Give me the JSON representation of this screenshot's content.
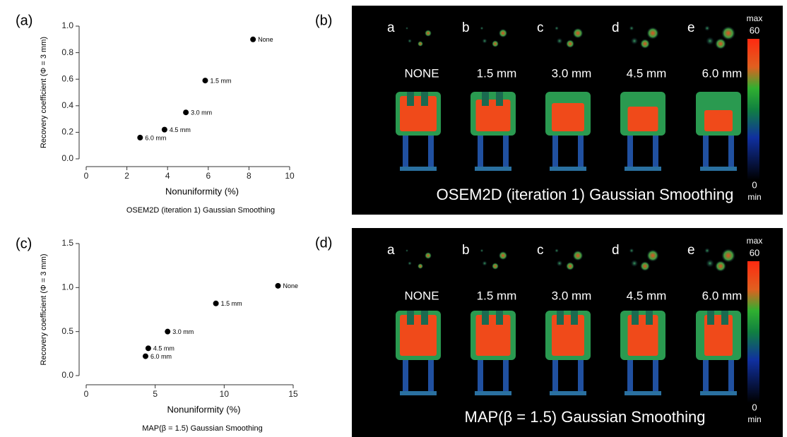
{
  "chart_data": [
    {
      "type": "scatter",
      "panel_label": "(a)",
      "x_label": "Nonuniformity (%)",
      "y_label": "Recovery coefficient (Φ = 3 mm)",
      "caption": "OSEM2D (iteration 1) Gaussian Smoothing",
      "x": [
        8.2,
        5.85,
        4.9,
        3.85,
        2.65
      ],
      "y": [
        0.9,
        0.59,
        0.35,
        0.22,
        0.16
      ],
      "point_labels": [
        "None",
        "1.5 mm",
        "3.0 mm",
        "4.5 mm",
        "6.0 mm"
      ],
      "color": "#000000",
      "xlim": [
        0,
        10
      ],
      "xticks": [
        0,
        2,
        4,
        6,
        8,
        10
      ],
      "ylim": [
        0,
        1.0
      ],
      "yticks": [
        {
          "value": 0,
          "label": "0.0"
        },
        0.2,
        0.4,
        0.6,
        0.8,
        {
          "value": 1,
          "label": "1.0"
        }
      ]
    },
    {
      "type": "scatter",
      "panel_label": "(c)",
      "x_label": "Nonuniformity (%)",
      "y_label": "Recovery coefficient (Φ = 3 mm)",
      "caption": "MAP(β = 1.5) Gaussian Smoothing",
      "x": [
        13.9,
        9.4,
        5.9,
        4.5,
        4.3
      ],
      "y": [
        1.02,
        0.82,
        0.5,
        0.31,
        0.22
      ],
      "point_labels": [
        "None",
        "1.5 mm",
        "3.0 mm",
        "4.5 mm",
        "6.0 mm"
      ],
      "color": "#000000",
      "xlim": [
        0,
        15
      ],
      "xticks": [
        0,
        5,
        10,
        15
      ],
      "ylim": [
        0,
        1.5
      ],
      "yticks": [
        {
          "value": 0,
          "label": "0.0"
        },
        0.5,
        {
          "value": 1,
          "label": "1.0"
        },
        1.5
      ]
    }
  ],
  "image_panels": [
    {
      "panel_label": "(b)",
      "letters": [
        "a",
        "b",
        "c",
        "d",
        "e"
      ],
      "settings": [
        "NONE",
        "1.5 mm",
        "3.0 mm",
        "4.5 mm",
        "6.0 mm"
      ],
      "colorbar": {
        "max_text": "max",
        "max": 60,
        "min": 0,
        "min_text": "min"
      },
      "caption": "OSEM2D (iteration 1) Gaussian Smoothing"
    },
    {
      "panel_label": "(d)",
      "letters": [
        "a",
        "b",
        "c",
        "d",
        "e"
      ],
      "settings": [
        "NONE",
        "1.5 mm",
        "3.0 mm",
        "4.5 mm",
        "6.0 mm"
      ],
      "colorbar": {
        "max_text": "max",
        "max": 60,
        "min": 0,
        "min_text": "min"
      },
      "caption": "MAP(β = 1.5) Gaussian Smoothing"
    }
  ]
}
